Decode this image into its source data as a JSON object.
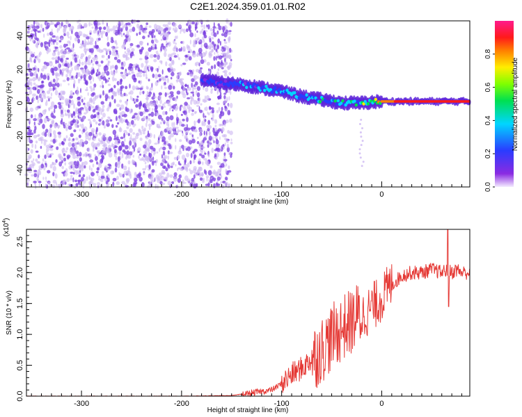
{
  "title": "C2E1.2024.359.01.01.R02",
  "colors": {
    "spectrogram_noise": "#7b3fe0",
    "spectrogram_noise_light": "#cdb8f2",
    "snr_line": "#e53935",
    "axis": "#000000"
  },
  "chart_data": [
    {
      "type": "heatmap",
      "xlabel": "Height of straight line (km)",
      "ylabel": "Frequency (Hz)",
      "xlim": [
        -355,
        88
      ],
      "ylim": [
        -50,
        49
      ],
      "x_ticks": [
        -300,
        -200,
        -100,
        0
      ],
      "x_tick_labels": [
        "-300",
        "-200",
        "-100",
        "0"
      ],
      "y_ticks": [
        -40,
        -20,
        0,
        20,
        40
      ],
      "y_tick_labels": [
        "-40",
        "-20",
        "0",
        "20",
        "40"
      ],
      "colorbar": {
        "label": "Normalized spectral amplitude",
        "range": [
          0.0,
          1.0
        ],
        "ticks": [
          0.0,
          0.2,
          0.4,
          0.6,
          0.8
        ],
        "tick_labels": [
          "0.0",
          "0.2",
          "0.4",
          "0.6",
          "0.8"
        ],
        "colormap": "rainbow (white/violet → blue → cyan → green → yellow → red → magenta)"
      },
      "signal_trace": {
        "x": [
          -180,
          -160,
          -140,
          -120,
          -100,
          -80,
          -60,
          -40,
          -20,
          0,
          20,
          40,
          60,
          88
        ],
        "frequency": [
          14,
          12,
          11,
          9,
          7,
          4,
          2,
          0,
          0,
          1,
          1,
          1,
          1,
          1
        ],
        "amplitude": [
          0.3,
          0.35,
          0.4,
          0.4,
          0.4,
          0.45,
          0.5,
          0.5,
          0.6,
          0.9,
          0.95,
          0.95,
          0.95,
          0.95
        ]
      }
    },
    {
      "type": "line",
      "xlabel": "Height of straight line (km)",
      "ylabel": "SNR (10 * v/v)",
      "y_multiplier_label": "(x10",
      "y_multiplier_exp": "4",
      "y_multiplier_close": ")",
      "xlim": [
        -355,
        88
      ],
      "ylim": [
        0,
        2.7
      ],
      "x_ticks": [
        -300,
        -200,
        -100,
        0
      ],
      "x_tick_labels": [
        "-300",
        "-200",
        "-100",
        "0"
      ],
      "y_ticks": [
        0,
        0.5,
        1.0,
        1.5,
        2.0,
        2.5
      ],
      "y_tick_labels": [
        "0.0",
        "0.5",
        "1.0",
        "1.5",
        "2.0",
        "2.5"
      ],
      "series": [
        {
          "color": "#e53935",
          "x": [
            -355,
            -300,
            -250,
            -200,
            -150,
            -130,
            -110,
            -100,
            -90,
            -80,
            -70,
            -60,
            -50,
            -40,
            -30,
            -25,
            -20,
            -15,
            -10,
            -5,
            0,
            10,
            20,
            30,
            40,
            50,
            60,
            65,
            70,
            75,
            80,
            88
          ],
          "y": [
            0.0,
            0.0,
            0.0,
            0.0,
            0.01,
            0.05,
            0.1,
            0.2,
            0.35,
            0.45,
            0.6,
            0.75,
            0.95,
            1.1,
            1.2,
            1.3,
            1.3,
            1.35,
            1.45,
            1.5,
            1.6,
            1.8,
            1.95,
            2.0,
            2.0,
            2.05,
            2.0,
            2.05,
            2.0,
            2.05,
            2.0,
            2.0
          ]
        }
      ]
    }
  ]
}
